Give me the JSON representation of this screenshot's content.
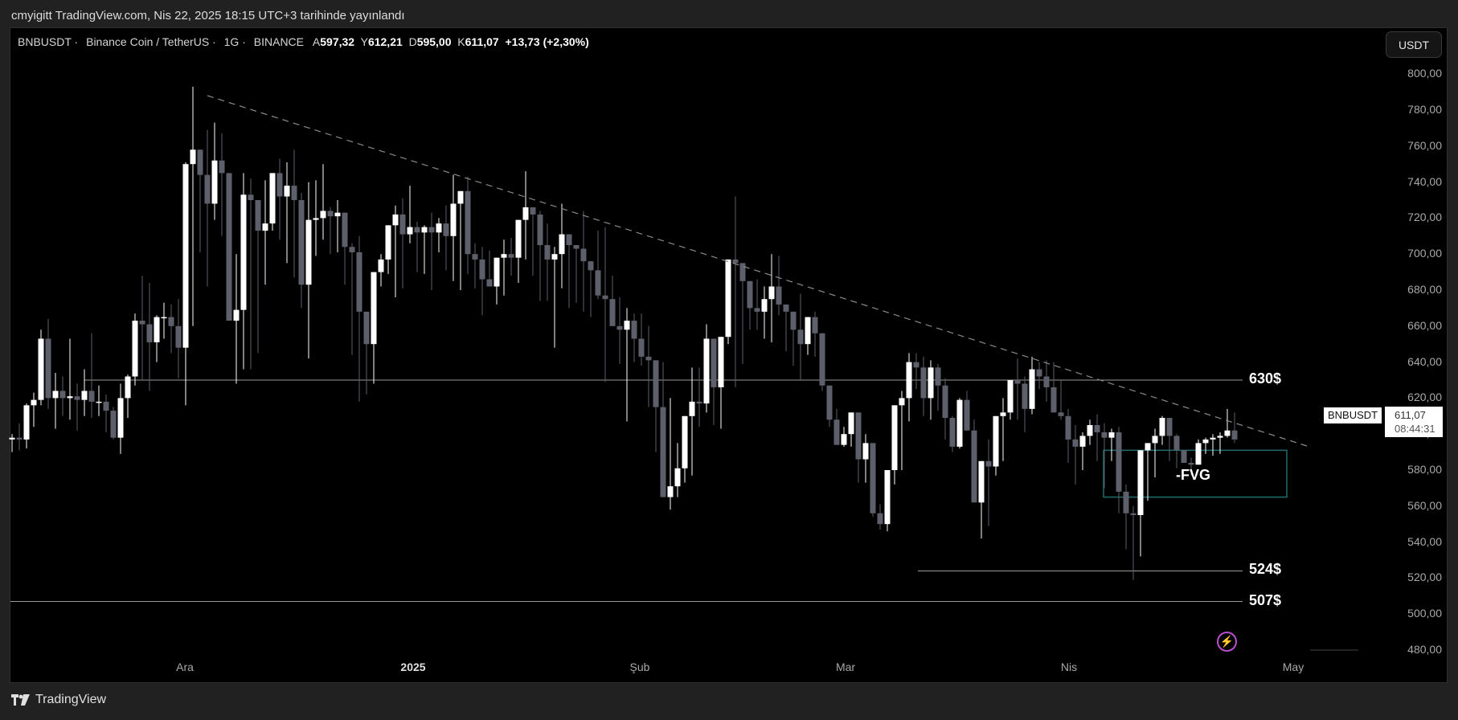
{
  "header": {
    "published_text": "cmyigitt TradingView.com, Nis 22, 2025 18:15 UTC+3 tarihinde yayınlandı"
  },
  "legend": {
    "symbol": "BNBUSDT",
    "name": "Binance Coin / TetherUS",
    "interval": "1G",
    "exchange": "BINANCE",
    "open_label": "A",
    "open": "597,32",
    "high_label": "Y",
    "high": "612,21",
    "low_label": "D",
    "low": "595,00",
    "close_label": "K",
    "close": "611,07",
    "change": "+13,73 (+2,30%)"
  },
  "unit_button": {
    "label": "USDT"
  },
  "price_axis": {
    "ticks": [
      "800,00",
      "780,00",
      "760,00",
      "740,00",
      "720,00",
      "700,00",
      "680,00",
      "660,00",
      "640,00",
      "620,00",
      "600,00",
      "580,00",
      "560,00",
      "540,00",
      "520,00",
      "500,00",
      "480,00"
    ]
  },
  "time_axis": {
    "ticks": [
      {
        "label": "Ara",
        "bold": false
      },
      {
        "label": "2025",
        "bold": true
      },
      {
        "label": "Şub",
        "bold": false
      },
      {
        "label": "Mar",
        "bold": false
      },
      {
        "label": "Nis",
        "bold": false
      },
      {
        "label": "May",
        "bold": false
      }
    ]
  },
  "price_tag": {
    "symbol": "BNBUSDT",
    "price": "611,07",
    "countdown": "08:44:31"
  },
  "annotations": {
    "level_630": "630$",
    "level_524": "524$",
    "level_507": "507$",
    "fvg": "-FVG"
  },
  "footer": {
    "brand": "TradingView"
  },
  "colors": {
    "up_candle": "#ffffff",
    "down_candle": "#5d606b",
    "background": "#000000",
    "frame": "#212121",
    "fvg_box": "#1e6e6e",
    "trendline": "#8a8a8a",
    "level_line": "#9a9a9a",
    "bolt": "#b94fcf"
  },
  "chart_data": {
    "type": "candlestick",
    "title": "BNBUSDT · Binance Coin / TetherUS · 1G · BINANCE",
    "xlabel": "",
    "ylabel": "USDT",
    "ylim": [
      475,
      805
    ],
    "x_ticks": [
      "Ara",
      "2025",
      "Şub",
      "Mar",
      "Nis",
      "May"
    ],
    "y_ticks": [
      480,
      500,
      520,
      540,
      560,
      580,
      600,
      620,
      640,
      660,
      680,
      700,
      720,
      740,
      760,
      780,
      800
    ],
    "last": {
      "open": 597.32,
      "high": 612.21,
      "low": 595.0,
      "close": 611.07,
      "change": 13.73,
      "change_pct": 2.3
    },
    "horizontal_levels": [
      {
        "label": "630$",
        "price": 630
      },
      {
        "label": "524$",
        "price": 524
      },
      {
        "label": "507$",
        "price": 507
      }
    ],
    "trendline": {
      "style": "dashed",
      "from": {
        "index": 24,
        "price": 788
      },
      "to": {
        "index": 176,
        "price": 593
      }
    },
    "fvg_zone": {
      "label": "-FVG",
      "top": 591,
      "bottom": 565,
      "from_index": 131,
      "to_index": 152
    },
    "candles": [
      [
        597,
        600,
        590,
        598
      ],
      [
        598,
        606,
        591,
        597
      ],
      [
        597,
        617,
        592,
        616
      ],
      [
        616,
        623,
        604,
        619
      ],
      [
        619,
        658,
        616,
        653
      ],
      [
        653,
        664,
        614,
        620
      ],
      [
        620,
        634,
        603,
        624
      ],
      [
        624,
        632,
        610,
        620
      ],
      [
        620,
        653,
        608,
        621
      ],
      [
        621,
        628,
        602,
        619
      ],
      [
        619,
        636,
        610,
        624
      ],
      [
        624,
        656,
        609,
        618
      ],
      [
        618,
        627,
        610,
        618
      ],
      [
        618,
        622,
        601,
        613
      ],
      [
        613,
        615,
        597,
        598
      ],
      [
        598,
        628,
        589,
        620
      ],
      [
        620,
        633,
        609,
        632
      ],
      [
        632,
        667,
        627,
        663
      ],
      [
        663,
        688,
        630,
        661
      ],
      [
        661,
        684,
        624,
        651
      ],
      [
        651,
        666,
        640,
        665
      ],
      [
        665,
        673,
        653,
        665
      ],
      [
        665,
        672,
        645,
        660
      ],
      [
        660,
        675,
        631,
        648
      ],
      [
        648,
        751,
        616,
        750
      ],
      [
        750,
        793,
        660,
        758
      ],
      [
        758,
        758,
        701,
        744
      ],
      [
        744,
        769,
        682,
        728
      ],
      [
        728,
        773,
        719,
        752
      ],
      [
        752,
        767,
        710,
        745
      ],
      [
        745,
        745,
        665,
        663
      ],
      [
        663,
        700,
        628,
        669
      ],
      [
        669,
        745,
        636,
        733
      ],
      [
        733,
        742,
        636,
        730
      ],
      [
        730,
        730,
        645,
        713
      ],
      [
        713,
        741,
        683,
        717
      ],
      [
        717,
        729,
        713,
        745
      ],
      [
        745,
        753,
        708,
        732
      ],
      [
        732,
        751,
        695,
        738
      ],
      [
        738,
        758,
        687,
        730
      ],
      [
        730,
        734,
        670,
        683
      ],
      [
        683,
        740,
        642,
        719
      ],
      [
        719,
        741,
        699,
        720
      ],
      [
        720,
        750,
        708,
        724
      ],
      [
        724,
        726,
        700,
        721
      ],
      [
        721,
        730,
        701,
        723
      ],
      [
        723,
        722,
        683,
        704
      ],
      [
        704,
        706,
        644,
        701
      ],
      [
        701,
        710,
        618,
        668
      ],
      [
        668,
        665,
        622,
        650
      ],
      [
        650,
        684,
        628,
        690
      ],
      [
        690,
        700,
        682,
        697
      ],
      [
        697,
        716,
        689,
        716
      ],
      [
        716,
        727,
        676,
        722
      ],
      [
        722,
        731,
        681,
        711
      ],
      [
        711,
        738,
        706,
        715
      ],
      [
        715,
        718,
        690,
        712
      ],
      [
        712,
        716,
        689,
        715
      ],
      [
        715,
        723,
        680,
        712
      ],
      [
        712,
        720,
        701,
        717
      ],
      [
        717,
        727,
        691,
        710
      ],
      [
        710,
        744,
        685,
        728
      ],
      [
        728,
        734,
        680,
        735
      ],
      [
        735,
        743,
        689,
        700
      ],
      [
        700,
        706,
        681,
        697
      ],
      [
        697,
        704,
        666,
        686
      ],
      [
        686,
        702,
        684,
        682
      ],
      [
        682,
        697,
        672,
        698
      ],
      [
        698,
        708,
        677,
        700
      ],
      [
        700,
        709,
        688,
        698
      ],
      [
        698,
        711,
        684,
        719
      ],
      [
        719,
        746,
        697,
        726
      ],
      [
        726,
        726,
        688,
        722
      ],
      [
        722,
        724,
        674,
        705
      ],
      [
        705,
        717,
        674,
        697
      ],
      [
        697,
        704,
        648,
        700
      ],
      [
        700,
        728,
        681,
        711
      ],
      [
        711,
        708,
        670,
        705
      ],
      [
        705,
        695,
        673,
        703
      ],
      [
        703,
        724,
        668,
        696
      ],
      [
        696,
        688,
        665,
        691
      ],
      [
        691,
        713,
        675,
        677
      ],
      [
        677,
        715,
        629,
        675
      ],
      [
        675,
        688,
        660,
        660
      ],
      [
        660,
        676,
        639,
        658
      ],
      [
        658,
        670,
        607,
        663
      ],
      [
        663,
        667,
        640,
        653
      ],
      [
        653,
        667,
        638,
        643
      ],
      [
        643,
        660,
        615,
        641
      ],
      [
        641,
        593,
        590,
        615
      ],
      [
        615,
        640,
        570,
        565
      ],
      [
        565,
        620,
        558,
        571
      ],
      [
        571,
        595,
        565,
        581
      ],
      [
        581,
        609,
        573,
        610
      ],
      [
        610,
        637,
        577,
        618
      ],
      [
        618,
        637,
        604,
        617
      ],
      [
        617,
        661,
        612,
        653
      ],
      [
        653,
        645,
        605,
        626
      ],
      [
        626,
        652,
        603,
        654
      ],
      [
        654,
        697,
        650,
        697
      ],
      [
        697,
        732,
        626,
        695
      ],
      [
        695,
        686,
        639,
        685
      ],
      [
        685,
        670,
        658,
        670
      ],
      [
        670,
        686,
        658,
        668
      ],
      [
        668,
        682,
        653,
        675
      ],
      [
        675,
        700,
        651,
        682
      ],
      [
        682,
        699,
        666,
        672
      ],
      [
        672,
        661,
        646,
        668
      ],
      [
        668,
        663,
        638,
        658
      ],
      [
        658,
        678,
        630,
        650
      ],
      [
        650,
        654,
        644,
        665
      ],
      [
        665,
        668,
        643,
        656
      ],
      [
        656,
        655,
        624,
        627
      ],
      [
        627,
        609,
        604,
        608
      ],
      [
        608,
        614,
        595,
        594
      ],
      [
        594,
        604,
        593,
        600
      ],
      [
        600,
        610,
        593,
        612
      ],
      [
        612,
        585,
        573,
        586
      ],
      [
        586,
        600,
        573,
        595
      ],
      [
        595,
        575,
        554,
        556
      ],
      [
        556,
        561,
        547,
        550
      ],
      [
        550,
        578,
        546,
        580
      ],
      [
        580,
        615,
        572,
        616
      ],
      [
        616,
        624,
        580,
        620
      ],
      [
        620,
        645,
        607,
        640
      ],
      [
        640,
        645,
        625,
        637
      ],
      [
        637,
        643,
        610,
        620
      ],
      [
        620,
        641,
        608,
        637
      ],
      [
        637,
        639,
        613,
        627
      ],
      [
        627,
        631,
        597,
        609
      ],
      [
        609,
        610,
        590,
        593
      ],
      [
        593,
        620,
        592,
        619
      ],
      [
        619,
        624,
        603,
        602
      ],
      [
        602,
        608,
        568,
        562
      ],
      [
        562,
        571,
        542,
        585
      ],
      [
        585,
        597,
        549,
        582
      ],
      [
        582,
        609,
        577,
        610
      ],
      [
        610,
        620,
        585,
        612
      ],
      [
        612,
        628,
        608,
        630
      ],
      [
        630,
        642,
        608,
        628
      ],
      [
        628,
        632,
        601,
        614
      ],
      [
        614,
        643,
        611,
        636
      ],
      [
        636,
        640,
        625,
        632
      ],
      [
        632,
        641,
        618,
        626
      ],
      [
        626,
        640,
        625,
        612
      ],
      [
        612,
        630,
        608,
        610
      ],
      [
        610,
        614,
        584,
        597
      ],
      [
        597,
        605,
        572,
        593
      ],
      [
        593,
        601,
        580,
        599
      ],
      [
        599,
        608,
        594,
        605
      ],
      [
        605,
        611,
        585,
        601
      ],
      [
        601,
        606,
        570,
        598
      ],
      [
        598,
        603,
        585,
        601
      ],
      [
        601,
        604,
        556,
        568
      ],
      [
        568,
        572,
        536,
        556
      ],
      [
        556,
        560,
        519,
        555
      ],
      [
        555,
        579,
        532,
        591
      ],
      [
        591,
        586,
        563,
        595
      ],
      [
        595,
        603,
        576,
        599
      ],
      [
        599,
        610,
        594,
        609
      ],
      [
        609,
        609,
        585,
        599
      ],
      [
        599,
        600,
        581,
        591
      ],
      [
        591,
        586,
        584,
        584
      ],
      [
        584,
        587,
        577,
        583
      ],
      [
        583,
        597,
        585,
        595
      ],
      [
        595,
        598,
        589,
        597
      ],
      [
        597,
        600,
        588,
        598
      ],
      [
        598,
        601,
        589,
        599
      ],
      [
        599,
        614,
        598,
        602
      ],
      [
        602,
        612,
        595,
        597
      ],
      [
        597,
        612,
        595,
        611
      ]
    ]
  }
}
